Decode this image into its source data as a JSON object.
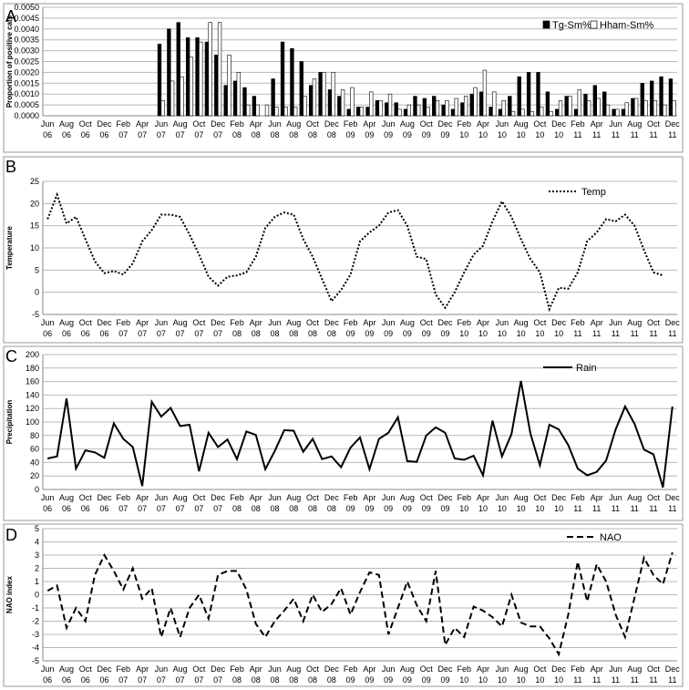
{
  "chart_data": [
    {
      "panel_label": "A",
      "type": "bar",
      "ylabel": "Proportion of positive cats",
      "ylim": [
        0,
        0.005
      ],
      "yticks": [
        "0.0000",
        "0.0005",
        "0.0010",
        "0.0015",
        "0.0020",
        "0.0025",
        "0.0030",
        "0.0035",
        "0.0040",
        "0.0045",
        "0.0050"
      ],
      "legend_placement": "top-right",
      "grid": "horizontal",
      "series": [
        {
          "name": "Tg-Sm%",
          "color": "#000000",
          "values": [
            0,
            0,
            0,
            0,
            0,
            0,
            0,
            0,
            0,
            0,
            0,
            0,
            0.0033,
            0.004,
            0.0043,
            0.0036,
            0.0036,
            0.0034,
            0.0028,
            0.0014,
            0.0016,
            0.0013,
            0.0009,
            0.0,
            0.0017,
            0.0034,
            0.0031,
            0.0025,
            0.0014,
            0.002,
            0.0012,
            0.0009,
            0.0003,
            0.0004,
            0.0004,
            0.0007,
            0.0006,
            0.0006,
            0.0003,
            0.0009,
            0.0008,
            0.0009,
            0.0005,
            0.0003,
            0.0006,
            0.001,
            0.0011,
            0.0004,
            0.0003,
            0.0009,
            0.0018,
            0.002,
            0.002,
            0.0011,
            0.0003,
            0.0009,
            0.0003,
            0.001,
            0.0014,
            0.0011,
            0.0003,
            0.0003,
            0.0008,
            0.0015,
            0.0016,
            0.0018,
            0.0017
          ]
        },
        {
          "name": "Hham-Sm%",
          "color": "#ffffff",
          "values": [
            0,
            0,
            0,
            0,
            0,
            0,
            0,
            0,
            0,
            0,
            0,
            0,
            0.0007,
            0.0016,
            0.0018,
            0.0027,
            0.0034,
            0.0043,
            0.0043,
            0.0028,
            0.002,
            0.0005,
            0.0005,
            0.0005,
            0.0004,
            0.0004,
            0.0004,
            0.0009,
            0.0017,
            0.002,
            0.002,
            0.0012,
            0.0013,
            0.0004,
            0.0011,
            0.0007,
            0.001,
            0.0003,
            0.0005,
            0.0005,
            0.0004,
            0.0007,
            0.0007,
            0.0008,
            0.0009,
            0.0013,
            0.0021,
            0.0011,
            0.0007,
            0.0002,
            0.0003,
            0.0002,
            0.0004,
            0.0002,
            0.0007,
            0.0009,
            0.0012,
            0.0007,
            0.0008,
            0.0005,
            0.0003,
            0.0006,
            0.0008,
            0.0007,
            0.0007,
            0.0005,
            0.0007
          ]
        }
      ]
    },
    {
      "panel_label": "B",
      "type": "line",
      "ylabel": "Temperature",
      "ylim": [
        -5,
        25
      ],
      "yticks": [
        "-5",
        "0",
        "5",
        "10",
        "15",
        "20",
        "25"
      ],
      "legend_placement": "top-right",
      "grid": "horizontal",
      "series": [
        {
          "name": "Temp",
          "style": "dotted",
          "values": [
            16.5,
            22.0,
            15.5,
            17.0,
            12.0,
            7.0,
            4.3,
            4.8,
            4.0,
            6.5,
            11.5,
            14.0,
            17.5,
            17.5,
            17.0,
            13.0,
            8.5,
            3.5,
            1.5,
            3.5,
            3.8,
            4.5,
            8.0,
            14.5,
            17.0,
            18.0,
            17.5,
            12.0,
            8.0,
            3.0,
            -2.0,
            0.5,
            4.0,
            11.5,
            13.5,
            15.0,
            18.0,
            18.5,
            15.0,
            8.0,
            7.5,
            -0.5,
            -3.5,
            0.0,
            4.5,
            8.5,
            10.5,
            16.0,
            20.5,
            17.0,
            12.0,
            7.5,
            4.5,
            -3.8,
            1.0,
            0.8,
            4.5,
            11.5,
            13.5,
            16.5,
            16.0,
            17.5,
            15.0,
            9.5,
            4.5,
            3.8
          ]
        }
      ]
    },
    {
      "panel_label": "C",
      "type": "line",
      "ylabel": "Precipitation",
      "ylim": [
        0,
        200
      ],
      "yticks": [
        "0",
        "20",
        "40",
        "60",
        "80",
        "100",
        "120",
        "140",
        "160",
        "180",
        "200"
      ],
      "legend_placement": "top-right",
      "grid": "horizontal",
      "series": [
        {
          "name": "Rain",
          "style": "solid",
          "values": [
            46,
            49,
            135,
            31,
            58,
            55,
            47,
            98,
            75,
            63,
            5,
            130,
            108,
            121,
            94,
            96,
            27,
            84,
            63,
            74,
            45,
            86,
            81,
            30,
            57,
            88,
            87,
            56,
            75,
            45,
            49,
            33,
            62,
            77,
            30,
            75,
            84,
            107,
            42,
            41,
            80,
            92,
            84,
            46,
            44,
            50,
            21,
            102,
            49,
            82,
            161,
            83,
            36,
            96,
            89,
            66,
            31,
            21,
            26,
            43,
            89,
            123,
            97,
            59,
            52,
            3,
            123
          ]
        }
      ]
    },
    {
      "panel_label": "D",
      "type": "line",
      "ylabel": "NAO index",
      "ylim": [
        -5,
        5
      ],
      "yticks": [
        "-5",
        "-4",
        "-3",
        "-2",
        "-1",
        "0",
        "1",
        "2",
        "3",
        "4",
        "5"
      ],
      "legend_placement": "top-right",
      "grid": "horizontal",
      "series": [
        {
          "name": "NAO",
          "style": "dashed",
          "values": [
            0.3,
            0.7,
            -2.5,
            -1.0,
            -2.0,
            1.5,
            3.0,
            1.8,
            0.4,
            2.0,
            -0.3,
            0.5,
            -3.2,
            -1.0,
            -3.2,
            -1.0,
            0.0,
            -1.8,
            1.5,
            1.8,
            1.8,
            0.4,
            -2.2,
            -3.2,
            -2.0,
            -1.2,
            -0.3,
            -2.0,
            0.0,
            -1.3,
            -0.7,
            0.5,
            -1.5,
            0.2,
            1.7,
            1.5,
            -3.0,
            -1.0,
            1.0,
            -0.8,
            -2.0,
            1.8,
            -3.8,
            -2.5,
            -3.2,
            -0.9,
            -1.2,
            -1.7,
            -2.4,
            0.0,
            -2.1,
            -2.4,
            -2.4,
            -3.3,
            -4.5,
            -1.5,
            2.5,
            -0.5,
            2.3,
            1.0,
            -1.5,
            -3.2,
            -0.2,
            2.8,
            1.5,
            0.8,
            3.2
          ]
        }
      ]
    }
  ],
  "x_ticks": [
    {
      "month": "Jun",
      "year": "06"
    },
    {
      "month": "Aug",
      "year": "06"
    },
    {
      "month": "Oct",
      "year": "06"
    },
    {
      "month": "Dec",
      "year": "06"
    },
    {
      "month": "Feb",
      "year": "07"
    },
    {
      "month": "Apr",
      "year": "07"
    },
    {
      "month": "Jun",
      "year": "07"
    },
    {
      "month": "Aug",
      "year": "07"
    },
    {
      "month": "Oct",
      "year": "07"
    },
    {
      "month": "Dec",
      "year": "07"
    },
    {
      "month": "Feb",
      "year": "08"
    },
    {
      "month": "Apr",
      "year": "08"
    },
    {
      "month": "Jun",
      "year": "08"
    },
    {
      "month": "Aug",
      "year": "08"
    },
    {
      "month": "Oct",
      "year": "08"
    },
    {
      "month": "Dec",
      "year": "08"
    },
    {
      "month": "Feb",
      "year": "09"
    },
    {
      "month": "Apr",
      "year": "09"
    },
    {
      "month": "Jun",
      "year": "09"
    },
    {
      "month": "Aug",
      "year": "09"
    },
    {
      "month": "Oct",
      "year": "09"
    },
    {
      "month": "Dec",
      "year": "09"
    },
    {
      "month": "Feb",
      "year": "10"
    },
    {
      "month": "Apr",
      "year": "10"
    },
    {
      "month": "Jun",
      "year": "10"
    },
    {
      "month": "Aug",
      "year": "10"
    },
    {
      "month": "Oct",
      "year": "10"
    },
    {
      "month": "Dec",
      "year": "10"
    },
    {
      "month": "Feb",
      "year": "11"
    },
    {
      "month": "Apr",
      "year": "11"
    },
    {
      "month": "Jun",
      "year": "11"
    },
    {
      "month": "Aug",
      "year": "11"
    },
    {
      "month": "Oct",
      "year": "11"
    },
    {
      "month": "Dec",
      "year": "11"
    }
  ]
}
